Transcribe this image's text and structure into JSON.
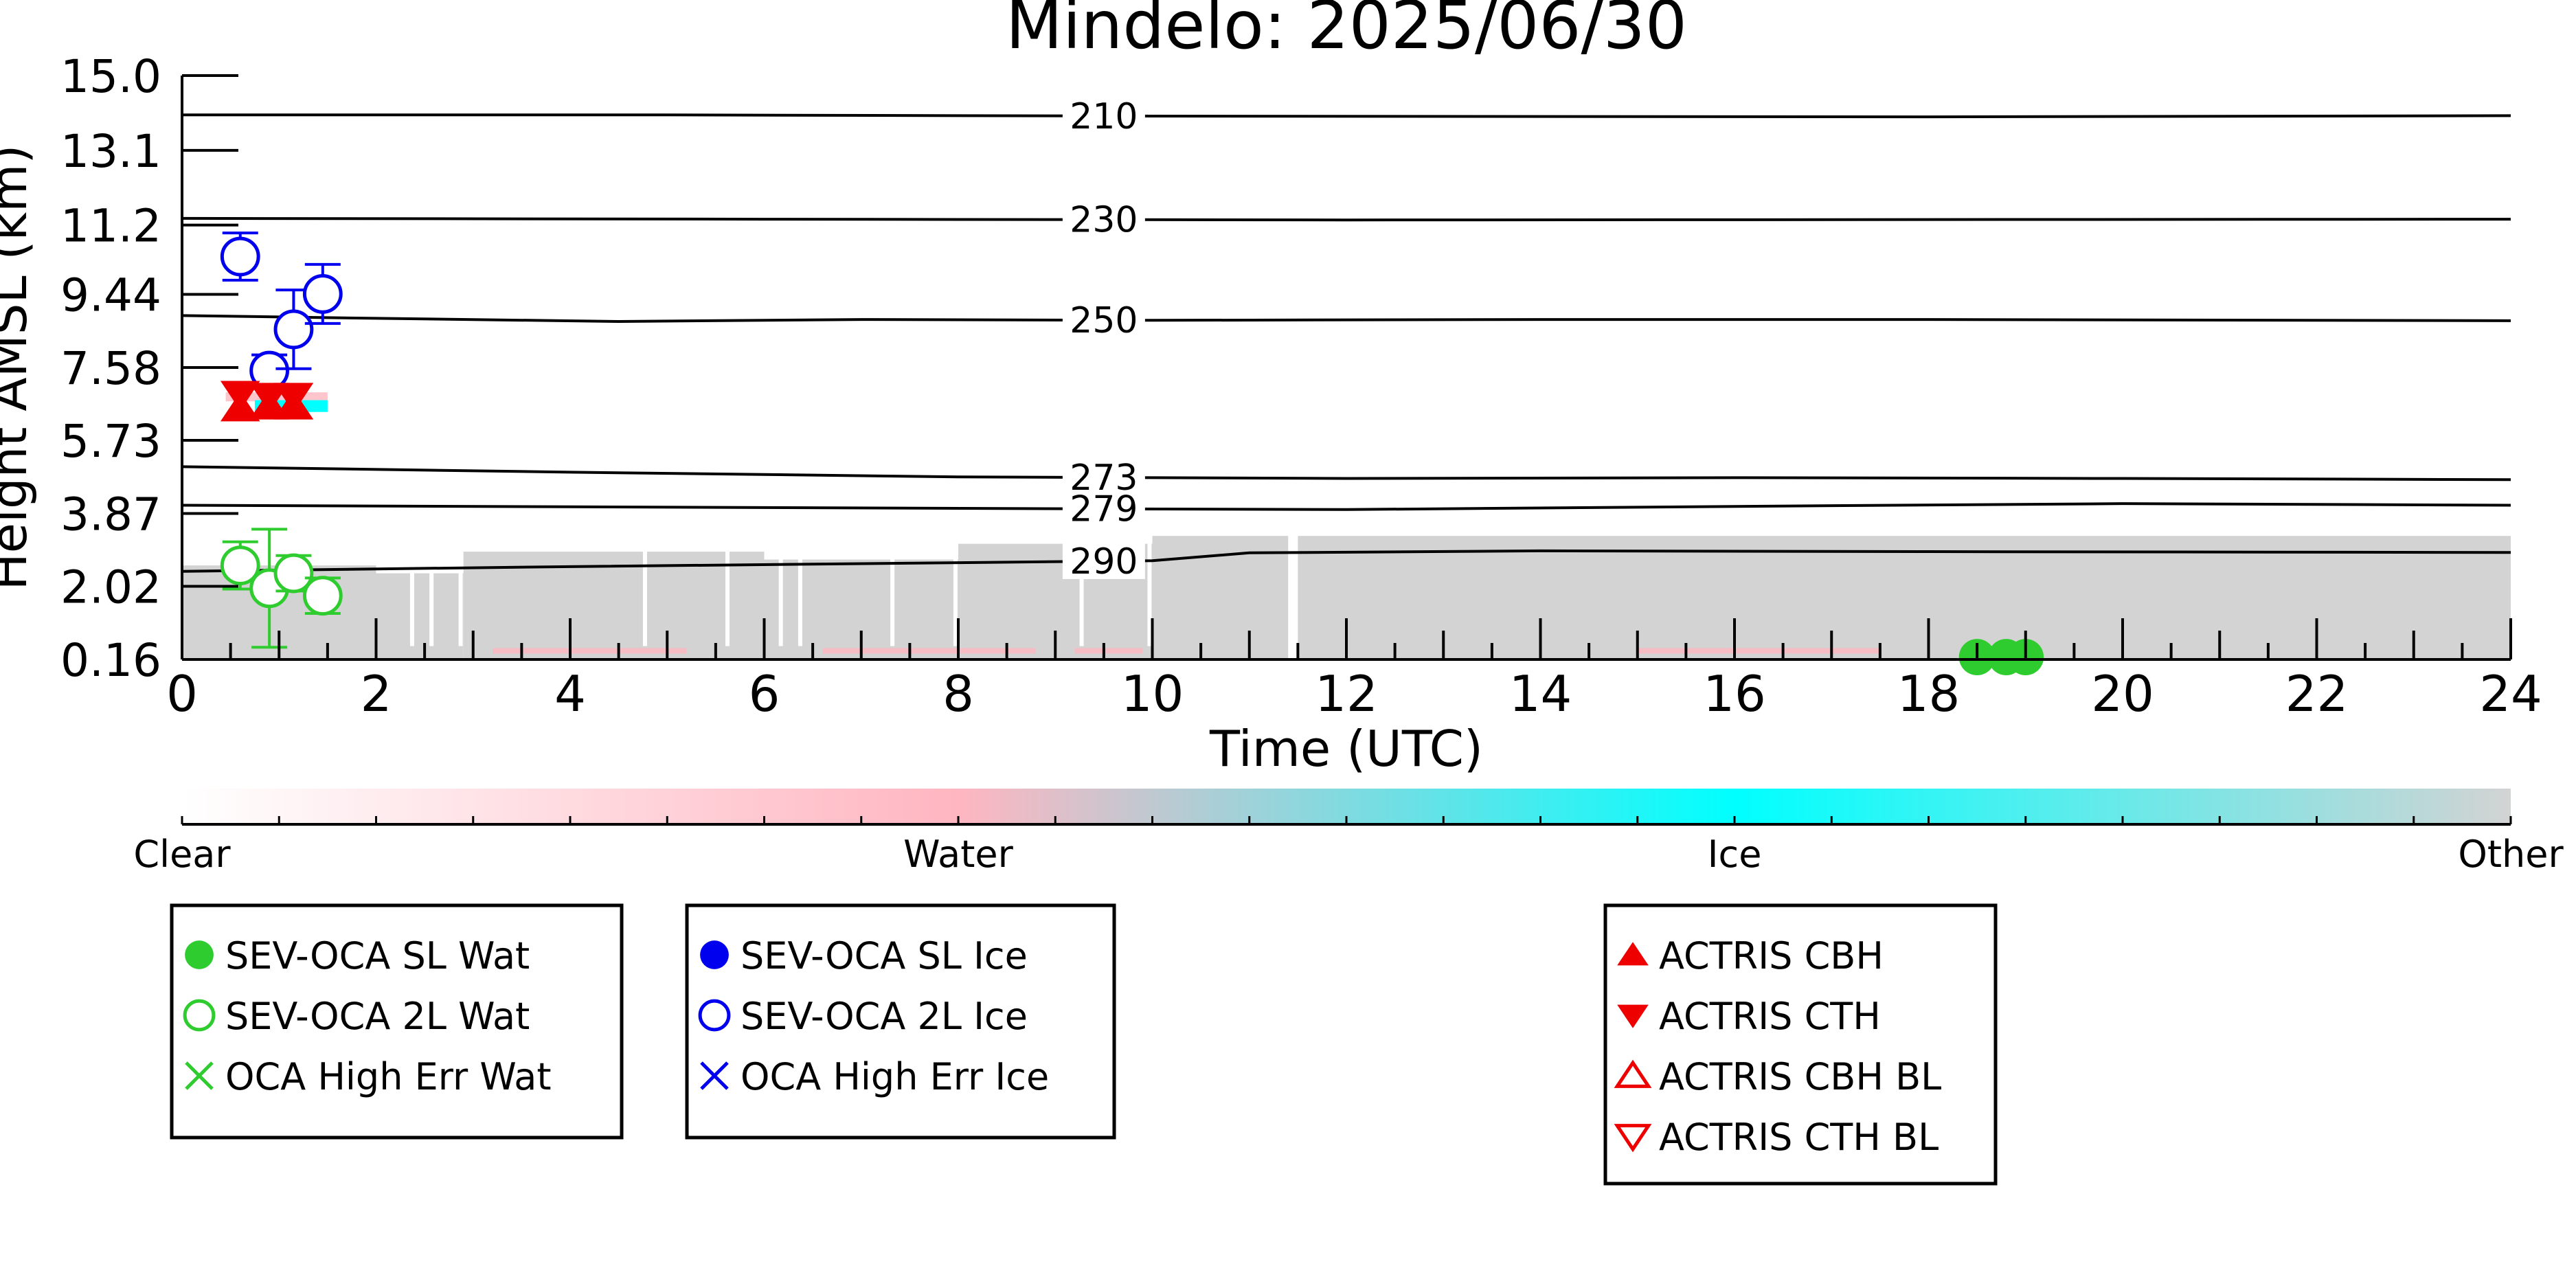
{
  "chart_data": {
    "type": "scatter",
    "title": "Mindelo: 2025/06/30",
    "xlabel": "Time (UTC)",
    "ylabel": "Height AMSL (km)",
    "xlim": [
      0,
      24
    ],
    "ylim": [
      0.16,
      15.0
    ],
    "x_ticks": [
      "0",
      "2",
      "4",
      "6",
      "8",
      "10",
      "12",
      "14",
      "16",
      "18",
      "20",
      "22",
      "24"
    ],
    "y_ticks": [
      "0.16",
      "2.02",
      "3.87",
      "5.73",
      "7.58",
      "9.44",
      "11.2",
      "13.1",
      "15.0"
    ],
    "y_tick_values": [
      0.16,
      2.02,
      3.87,
      5.73,
      7.58,
      9.44,
      11.2,
      13.1,
      15.0
    ],
    "grid": false,
    "contours": [
      {
        "label": "210",
        "x": [
          0,
          5,
          10,
          18,
          24
        ],
        "y": [
          14.0,
          14.0,
          13.97,
          13.95,
          13.98
        ]
      },
      {
        "label": "230",
        "x": [
          0,
          6,
          12,
          24
        ],
        "y": [
          11.37,
          11.35,
          11.33,
          11.35
        ]
      },
      {
        "label": "250",
        "x": [
          0,
          2,
          4.5,
          7,
          10,
          14,
          18,
          24
        ],
        "y": [
          8.9,
          8.83,
          8.75,
          8.8,
          8.78,
          8.8,
          8.8,
          8.77
        ]
      },
      {
        "label": "273",
        "x": [
          0,
          4,
          8,
          12,
          16,
          20,
          24
        ],
        "y": [
          5.06,
          4.92,
          4.8,
          4.76,
          4.78,
          4.76,
          4.73
        ]
      },
      {
        "label": "279",
        "x": [
          0,
          4,
          8,
          12,
          16,
          20,
          24
        ],
        "y": [
          4.08,
          4.04,
          4.0,
          3.97,
          4.05,
          4.12,
          4.08
        ]
      },
      {
        "label": "290",
        "x": [
          0,
          4,
          8,
          10,
          11,
          14,
          18,
          24
        ],
        "y": [
          2.4,
          2.52,
          2.62,
          2.67,
          2.87,
          2.92,
          2.9,
          2.88
        ]
      }
    ],
    "series": [
      {
        "name": "SEV-OCA SL Wat",
        "marker": "filled-circle",
        "color": "#2ecc2e",
        "points": [
          [
            18.5,
            0.22
          ],
          [
            18.8,
            0.22
          ],
          [
            19.0,
            0.22
          ]
        ]
      },
      {
        "name": "SEV-OCA 2L Wat",
        "marker": "open-circle",
        "color": "#2ecc2e",
        "points": [
          [
            0.6,
            2.55,
            0.6
          ],
          [
            0.9,
            1.97,
            1.5
          ],
          [
            1.15,
            2.35,
            0.45
          ],
          [
            1.45,
            1.78,
            0.45
          ]
        ]
      },
      {
        "name": "OCA High Err Wat",
        "marker": "x",
        "color": "#2ecc2e",
        "points": []
      },
      {
        "name": "SEV-OCA SL Ice",
        "marker": "filled-circle",
        "color": "#0000ee",
        "points": []
      },
      {
        "name": "SEV-OCA 2L Ice",
        "marker": "open-circle",
        "color": "#0000ee",
        "points": [
          [
            0.6,
            10.4,
            0.6
          ],
          [
            0.9,
            7.5,
            0.4
          ],
          [
            1.15,
            8.55,
            1.0
          ],
          [
            1.45,
            9.45,
            0.75
          ]
        ]
      },
      {
        "name": "OCA High Err Ice",
        "marker": "x",
        "color": "#0000ee",
        "points": []
      },
      {
        "name": "ACTRIS CBH",
        "marker": "filled-triangle-up",
        "color": "#ee0000",
        "points": [
          [
            0.6,
            6.55
          ],
          [
            0.9,
            6.6
          ],
          [
            1.15,
            6.6
          ]
        ]
      },
      {
        "name": "ACTRIS CTH",
        "marker": "filled-triangle-down",
        "color": "#ee0000",
        "points": [
          [
            0.6,
            6.9
          ],
          [
            0.9,
            6.85
          ],
          [
            1.15,
            6.85
          ]
        ]
      },
      {
        "name": "ACTRIS CBH BL",
        "marker": "open-triangle-up",
        "color": "#ee0000",
        "points": []
      },
      {
        "name": "ACTRIS CTH BL",
        "marker": "open-triangle-down",
        "color": "#ee0000",
        "points": []
      }
    ],
    "background_classification": {
      "water_patches": [
        [
          0.45,
          1.5,
          6.72,
          6.95
        ]
      ],
      "ice_patches": [
        [
          0.75,
          1.5,
          6.45,
          6.75
        ]
      ],
      "other_columns": [
        [
          0,
          2,
          0.16,
          2.55
        ],
        [
          2,
          2.9,
          0.16,
          2.35
        ],
        [
          2.9,
          6,
          0.16,
          2.9
        ],
        [
          6,
          8,
          0.16,
          2.7
        ],
        [
          8,
          10,
          0.16,
          3.1
        ],
        [
          10,
          11.4,
          0.16,
          3.3
        ],
        [
          11.5,
          24,
          0.16,
          3.3
        ]
      ]
    },
    "colorbar": {
      "colors": [
        "#ffffff",
        "#ffb6c1",
        "#00ffff",
        "#d3d3d3"
      ],
      "labels": [
        "Clear",
        "Water",
        "Ice",
        "Other"
      ]
    }
  },
  "legends": [
    {
      "items": [
        {
          "label": "SEV-OCA SL Wat",
          "marker": "filled-circle",
          "color": "#2ecc2e"
        },
        {
          "label": "SEV-OCA 2L Wat",
          "marker": "open-circle",
          "color": "#2ecc2e"
        },
        {
          "label": "OCA High Err Wat",
          "marker": "x",
          "color": "#2ecc2e"
        }
      ]
    },
    {
      "items": [
        {
          "label": "SEV-OCA SL Ice",
          "marker": "filled-circle",
          "color": "#0000ee"
        },
        {
          "label": "SEV-OCA 2L Ice",
          "marker": "open-circle",
          "color": "#0000ee"
        },
        {
          "label": "OCA High Err Ice",
          "marker": "x",
          "color": "#0000ee"
        }
      ]
    },
    {
      "items": [
        {
          "label": "ACTRIS CBH",
          "marker": "filled-triangle-up",
          "color": "#ee0000"
        },
        {
          "label": "ACTRIS CTH",
          "marker": "filled-triangle-down",
          "color": "#ee0000"
        },
        {
          "label": "ACTRIS CBH BL",
          "marker": "open-triangle-up",
          "color": "#ee0000"
        },
        {
          "label": "ACTRIS CTH BL",
          "marker": "open-triangle-down",
          "color": "#ee0000"
        }
      ]
    }
  ]
}
